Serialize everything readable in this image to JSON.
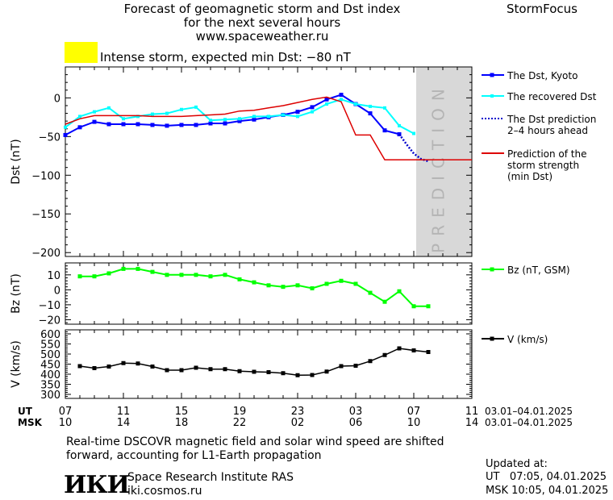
{
  "header": {
    "title_line1": "Forecast of geomagnetic storm and Dst index",
    "title_line2": "for the next several hours",
    "url": "www.spaceweather.ru",
    "brand": "StormFocus",
    "storm_label": "Intense storm, expected min Dst: −80 nT",
    "storm_color": "#ffff00"
  },
  "legend": {
    "dst_kyoto": "The Dst, Kyoto",
    "dst_recovered": "The recovered Dst",
    "dst_prediction_1": "The Dst prediction",
    "dst_prediction_2": "2–4 hours ahead",
    "storm_strength_1": "Prediction of the",
    "storm_strength_2": "storm strength",
    "storm_strength_3": "(min Dst)",
    "bz": "Bz (nT, GSM)",
    "v": "V (km/s)"
  },
  "prediction_band_label": "PREDICTION",
  "time_axis": {
    "ut_label": "UT",
    "msk_label": "MSK",
    "ut_ticks": [
      "07",
      "11",
      "15",
      "19",
      "23",
      "03",
      "07",
      "11"
    ],
    "msk_ticks": [
      "10",
      "14",
      "18",
      "22",
      "02",
      "06",
      "10",
      "14"
    ],
    "ut_range": "03.01–04.01.2025",
    "msk_range": "03.01–04.01.2025"
  },
  "footer": {
    "note_line1": "Real-time DSCOVR magnetic field and solar wind speed are shifted",
    "note_line2": "forward, accounting for L1-Earth propagation",
    "logo_text": "ИКИ",
    "institute": "Space Research Institute RAS",
    "site": "iki.cosmos.ru",
    "updated_label": "Updated at:",
    "updated_ut": "UT   07:05, 04.01.2025",
    "updated_msk": "MSK 10:05, 04.01.2025"
  },
  "colors": {
    "kyoto": "#0000ff",
    "recovered": "#00ffff",
    "prediction": "#0000cc",
    "storm": "#dd0000",
    "bz": "#00ff00",
    "v": "#000000",
    "band": "#d8d8d8"
  },
  "chart_data": [
    {
      "type": "line",
      "panel": "dst",
      "ylabel": "Dst (nT)",
      "ylim": [
        -205,
        40
      ],
      "yticks": [
        0,
        -50,
        -100,
        -150,
        -200
      ],
      "xlim": [
        0,
        28
      ],
      "prediction_from": 24,
      "series": [
        {
          "name": "The Dst, Kyoto",
          "x": [
            0,
            1,
            2,
            3,
            4,
            5,
            6,
            7,
            8,
            9,
            10,
            11,
            12,
            13,
            14,
            15,
            16,
            17,
            18,
            19,
            20,
            21,
            22,
            23
          ],
          "values": [
            -48,
            -38,
            -31,
            -34,
            -34,
            -34,
            -35,
            -36,
            -35,
            -35,
            -33,
            -33,
            -30,
            -28,
            -25,
            -22,
            -18,
            -12,
            -2,
            4,
            -8,
            -20,
            -42,
            -47
          ]
        },
        {
          "name": "The recovered Dst",
          "x": [
            0,
            1,
            2,
            3,
            4,
            5,
            6,
            7,
            8,
            9,
            10,
            11,
            12,
            13,
            14,
            15,
            16,
            17,
            18,
            19,
            20,
            21,
            22,
            23,
            24
          ],
          "values": [
            -38,
            -24,
            -18,
            -13,
            -27,
            -24,
            -21,
            -20,
            -15,
            -12,
            -29,
            -28,
            -27,
            -24,
            -24,
            -22,
            -24,
            -18,
            -8,
            -2,
            -8,
            -11,
            -13,
            -36,
            -46
          ]
        },
        {
          "name": "The Dst prediction",
          "x": [
            23,
            23.5,
            24,
            24.5,
            25
          ],
          "values": [
            -47,
            -60,
            -72,
            -79,
            -82
          ]
        },
        {
          "name": "Prediction of the storm strength",
          "x": [
            0,
            1,
            2,
            3,
            4,
            5,
            6,
            7,
            8,
            9,
            10,
            11,
            12,
            13,
            14,
            15,
            16,
            17,
            18,
            19,
            20,
            21,
            22,
            23,
            24,
            25,
            26,
            27,
            28
          ],
          "values": [
            -34,
            -27,
            -23,
            -23,
            -23,
            -23,
            -24,
            -24,
            -24,
            -23,
            -22,
            -21,
            -17,
            -16,
            -13,
            -10,
            -6,
            -2,
            1,
            -5,
            -48,
            -48,
            -80,
            -80,
            -80,
            -80,
            -80,
            -80,
            -80
          ]
        }
      ]
    },
    {
      "type": "line",
      "panel": "bz",
      "ylabel": "Bz (nT)",
      "ylim": [
        -23,
        18
      ],
      "yticks": [
        10,
        0,
        -10,
        -20
      ],
      "xlim": [
        0,
        28
      ],
      "series": [
        {
          "name": "Bz (nT, GSM)",
          "x": [
            1,
            2,
            3,
            4,
            5,
            6,
            7,
            8,
            9,
            10,
            11,
            12,
            13,
            14,
            15,
            16,
            17,
            18,
            19,
            20,
            21,
            22,
            23,
            24,
            25
          ],
          "values": [
            9,
            9,
            11,
            14,
            14,
            12,
            10,
            10,
            10,
            9,
            10,
            7,
            5,
            3,
            2,
            3,
            1,
            4,
            6,
            4,
            -2,
            -8,
            -1,
            -11,
            -11
          ]
        }
      ]
    },
    {
      "type": "line",
      "panel": "v",
      "ylabel": "V (km/s)",
      "ylim": [
        280,
        620
      ],
      "yticks": [
        600,
        550,
        500,
        450,
        400,
        350,
        300
      ],
      "xlim": [
        0,
        28
      ],
      "series": [
        {
          "name": "V (km/s)",
          "x": [
            1,
            2,
            3,
            4,
            5,
            6,
            7,
            8,
            9,
            10,
            11,
            12,
            13,
            14,
            15,
            16,
            17,
            18,
            19,
            20,
            21,
            22,
            23,
            24,
            25
          ],
          "values": [
            440,
            430,
            438,
            455,
            453,
            438,
            420,
            420,
            432,
            425,
            425,
            415,
            412,
            410,
            405,
            395,
            396,
            413,
            440,
            442,
            465,
            495,
            528,
            518,
            510
          ]
        }
      ]
    }
  ]
}
